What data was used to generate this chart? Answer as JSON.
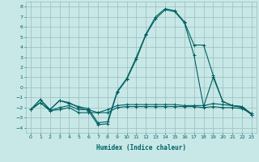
{
  "xlabel": "Humidex (Indice chaleur)",
  "bg_color": "#c8e8e8",
  "grid_color": "#9cbcbc",
  "line_color": "#006060",
  "xlim": [
    -0.5,
    23.5
  ],
  "ylim": [
    -4.5,
    8.5
  ],
  "xticks": [
    0,
    1,
    2,
    3,
    4,
    5,
    6,
    7,
    8,
    9,
    10,
    11,
    12,
    13,
    14,
    15,
    16,
    17,
    18,
    19,
    20,
    21,
    22,
    23
  ],
  "yticks": [
    -4,
    -3,
    -2,
    -1,
    0,
    1,
    2,
    3,
    4,
    5,
    6,
    7,
    8
  ],
  "series": [
    {
      "points": [
        [
          0,
          -2.2
        ],
        [
          1,
          -1.2
        ],
        [
          2,
          -2.2
        ],
        [
          3,
          -1.3
        ],
        [
          4,
          -1.5
        ],
        [
          5,
          -2.0
        ],
        [
          6,
          -2.3
        ],
        [
          7,
          -3.7
        ],
        [
          8,
          -3.6
        ],
        [
          9,
          -0.5
        ],
        [
          10,
          0.8
        ],
        [
          11,
          2.8
        ],
        [
          12,
          5.2
        ],
        [
          13,
          6.8
        ],
        [
          14,
          7.7
        ],
        [
          15,
          7.5
        ],
        [
          16,
          6.4
        ],
        [
          17,
          3.2
        ],
        [
          18,
          -1.9
        ],
        [
          19,
          1.0
        ],
        [
          20,
          -1.4
        ],
        [
          21,
          -1.8
        ],
        [
          22,
          -1.9
        ],
        [
          23,
          -2.7
        ]
      ]
    },
    {
      "points": [
        [
          0,
          -2.2
        ],
        [
          1,
          -1.5
        ],
        [
          2,
          -2.3
        ],
        [
          3,
          -2.0
        ],
        [
          4,
          -1.8
        ],
        [
          5,
          -2.2
        ],
        [
          6,
          -2.2
        ],
        [
          7,
          -2.5
        ],
        [
          8,
          -2.2
        ],
        [
          9,
          -1.8
        ],
        [
          10,
          -1.7
        ],
        [
          11,
          -1.7
        ],
        [
          12,
          -1.7
        ],
        [
          13,
          -1.7
        ],
        [
          14,
          -1.7
        ],
        [
          15,
          -1.7
        ],
        [
          16,
          -1.8
        ],
        [
          17,
          -1.8
        ],
        [
          18,
          -1.8
        ],
        [
          19,
          -1.6
        ],
        [
          20,
          -1.7
        ],
        [
          21,
          -1.8
        ],
        [
          22,
          -1.9
        ],
        [
          23,
          -2.6
        ]
      ]
    },
    {
      "points": [
        [
          0,
          -2.2
        ],
        [
          1,
          -1.5
        ],
        [
          2,
          -2.3
        ],
        [
          3,
          -2.2
        ],
        [
          4,
          -2.0
        ],
        [
          5,
          -2.5
        ],
        [
          6,
          -2.5
        ],
        [
          7,
          -2.5
        ],
        [
          8,
          -2.5
        ],
        [
          9,
          -2.0
        ],
        [
          10,
          -1.9
        ],
        [
          11,
          -1.9
        ],
        [
          12,
          -1.9
        ],
        [
          13,
          -1.9
        ],
        [
          14,
          -1.9
        ],
        [
          15,
          -1.9
        ],
        [
          16,
          -1.9
        ],
        [
          17,
          -1.9
        ],
        [
          18,
          -2.0
        ],
        [
          19,
          -1.9
        ],
        [
          20,
          -2.0
        ],
        [
          21,
          -2.0
        ],
        [
          22,
          -2.1
        ],
        [
          23,
          -2.6
        ]
      ]
    },
    {
      "points": [
        [
          0,
          -2.2
        ],
        [
          1,
          -1.2
        ],
        [
          2,
          -2.2
        ],
        [
          3,
          -1.3
        ],
        [
          4,
          -1.6
        ],
        [
          5,
          -1.9
        ],
        [
          6,
          -2.1
        ],
        [
          7,
          -3.5
        ],
        [
          8,
          -3.4
        ],
        [
          9,
          -0.4
        ],
        [
          10,
          0.9
        ],
        [
          11,
          3.0
        ],
        [
          12,
          5.3
        ],
        [
          13,
          7.0
        ],
        [
          14,
          7.8
        ],
        [
          15,
          7.6
        ],
        [
          16,
          6.5
        ],
        [
          17,
          4.2
        ],
        [
          18,
          4.2
        ],
        [
          19,
          1.2
        ],
        [
          20,
          -1.4
        ],
        [
          21,
          -1.8
        ],
        [
          22,
          -2.0
        ],
        [
          23,
          -2.7
        ]
      ]
    }
  ]
}
